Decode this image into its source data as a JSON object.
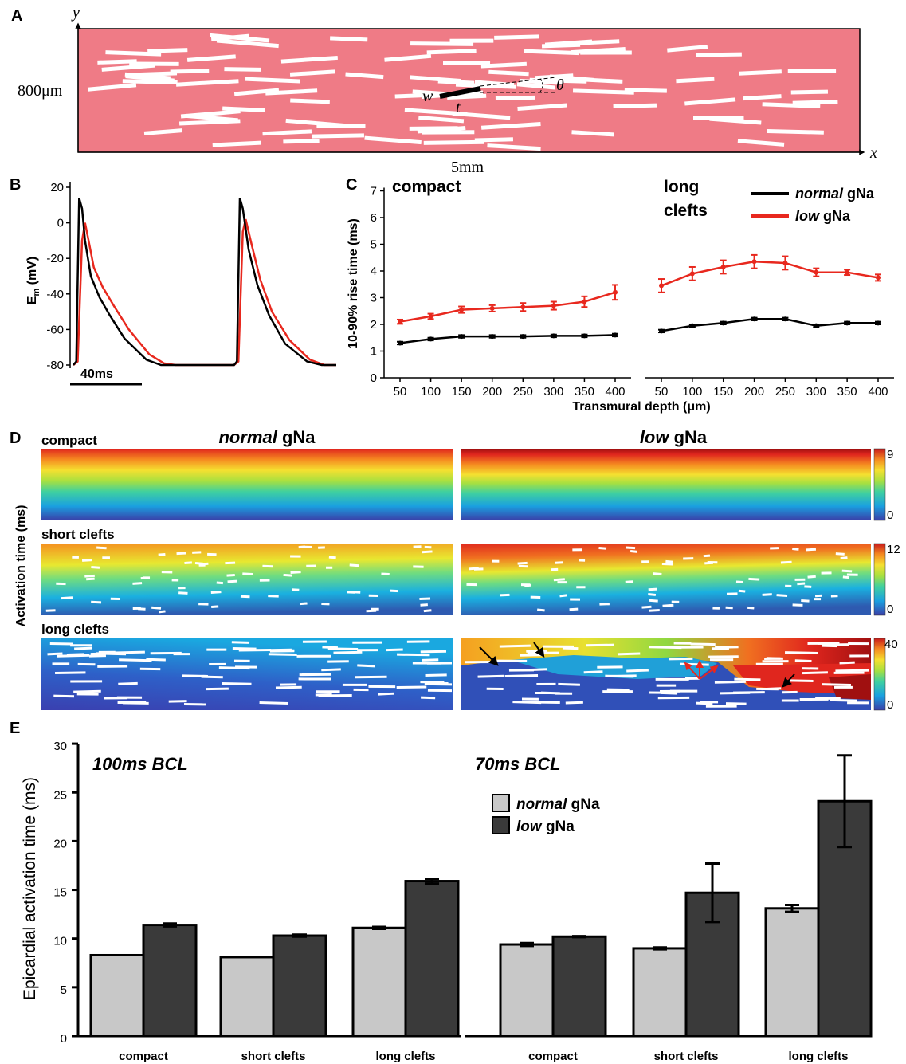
{
  "panels": {
    "A": "A",
    "B": "B",
    "C": "C",
    "D": "D",
    "E": "E"
  },
  "panel_a": {
    "axis_y": "y",
    "axis_x": "x",
    "height_label": "800μm",
    "width_label": "5mm",
    "label_w": "w",
    "label_t": "t",
    "label_theta": "θ",
    "tissue_color": "#ef7b86",
    "cleft_color": "#ffffff"
  },
  "colors": {
    "normal": "#000000",
    "low": "#e8281e",
    "bar_normal": "#c8c8c8",
    "bar_low": "#3a3a3a"
  },
  "chart_data": [
    {
      "panel": "B",
      "type": "line",
      "ylabel": "E_m (mV)",
      "ylim": [
        -80,
        20
      ],
      "yticks": [
        20,
        0,
        -20,
        -40,
        -60,
        -80
      ],
      "scale_bar": "40ms",
      "series": [
        {
          "x": [
            0,
            2,
            4,
            6,
            8,
            12,
            18,
            25,
            35,
            50,
            60,
            70,
            80,
            90,
            100,
            110,
            112,
            114,
            116,
            120,
            126,
            134,
            145,
            160,
            170,
            180
          ],
          "values": [
            -80,
            -78,
            14,
            8,
            -10,
            -30,
            -42,
            -52,
            -65,
            -77,
            -80,
            -80,
            -80,
            -80,
            -80,
            -80,
            -78,
            14,
            8,
            -15,
            -35,
            -52,
            -68,
            -78,
            -80,
            -80
          ]
        },
        {
          "x": [
            0,
            3,
            6,
            8,
            10,
            14,
            20,
            28,
            38,
            52,
            62,
            70,
            80,
            90,
            100,
            110,
            113,
            116,
            118,
            122,
            128,
            136,
            148,
            162,
            172,
            180
          ],
          "values": [
            -80,
            -78,
            -10,
            0,
            -8,
            -25,
            -36,
            -47,
            -60,
            -74,
            -79,
            -80,
            -80,
            -80,
            -80,
            -80,
            -78,
            -5,
            2,
            -12,
            -32,
            -50,
            -66,
            -77,
            -80,
            -80
          ]
        }
      ]
    },
    {
      "panel": "C",
      "type": "line",
      "ylabel": "10-90% rise time (ms)",
      "xlabel": "Transmural depth (μm)",
      "ylim": [
        0,
        7
      ],
      "yticks": [
        0,
        1,
        2,
        3,
        4,
        5,
        6,
        7
      ],
      "x": [
        50,
        100,
        150,
        200,
        250,
        300,
        350,
        400
      ],
      "legend": [
        {
          "emph": "normal",
          "rest": " gNa"
        },
        {
          "emph": "low",
          "rest": " gNa"
        }
      ],
      "subplots": [
        {
          "title": "compact",
          "normal": [
            1.3,
            1.45,
            1.55,
            1.55,
            1.55,
            1.57,
            1.57,
            1.6
          ],
          "normal_err": [
            0.05,
            0.05,
            0.05,
            0.05,
            0.05,
            0.05,
            0.05,
            0.05
          ],
          "low": [
            2.1,
            2.3,
            2.55,
            2.6,
            2.65,
            2.7,
            2.85,
            3.2
          ],
          "low_err": [
            0.08,
            0.1,
            0.12,
            0.12,
            0.15,
            0.15,
            0.2,
            0.28
          ]
        },
        {
          "title_lines": [
            "long",
            "clefts"
          ],
          "normal": [
            1.75,
            1.95,
            2.05,
            2.2,
            2.2,
            1.95,
            2.05,
            2.05
          ],
          "normal_err": [
            0.05,
            0.05,
            0.05,
            0.05,
            0.05,
            0.05,
            0.05,
            0.05
          ],
          "low": [
            3.45,
            3.9,
            4.15,
            4.35,
            4.3,
            3.95,
            3.95,
            3.75
          ],
          "low_err": [
            0.25,
            0.25,
            0.25,
            0.25,
            0.25,
            0.15,
            0.1,
            0.12
          ]
        }
      ]
    },
    {
      "panel": "D",
      "type": "heatmap",
      "ylabel": "Activation time (ms)",
      "column_titles": [
        {
          "emph": "normal",
          "rest": " gNa"
        },
        {
          "emph": "low",
          "rest": " gNa"
        }
      ],
      "rows": [
        {
          "label": "compact",
          "colorbar_max": "9",
          "colorbar_min": "0"
        },
        {
          "label": "short clefts",
          "colorbar_max": "12",
          "colorbar_min": "0"
        },
        {
          "label": "long clefts",
          "colorbar_max": "40",
          "colorbar_min": "0"
        }
      ]
    },
    {
      "panel": "E",
      "type": "bar",
      "ylabel": "Epicardial activation time (ms)",
      "ylim": [
        0,
        30
      ],
      "yticks": [
        0,
        5,
        10,
        15,
        20,
        25,
        30
      ],
      "legend": [
        {
          "emph": "normal",
          "rest": " gNa"
        },
        {
          "emph": "low",
          "rest": " gNa"
        }
      ],
      "groups": [
        {
          "title": "100ms BCL",
          "categories": [
            "compact",
            "short clefts",
            "long clefts"
          ],
          "normal": [
            8.3,
            8.1,
            11.1
          ],
          "normal_err": [
            0,
            0,
            0.1
          ],
          "low": [
            11.4,
            10.3,
            15.9
          ],
          "low_err": [
            0.15,
            0.1,
            0.25
          ]
        },
        {
          "title": "70ms BCL",
          "categories": [
            "compact",
            "short clefts",
            "long clefts"
          ],
          "normal": [
            9.4,
            9.0,
            13.1
          ],
          "normal_err": [
            0.15,
            0.1,
            0.35
          ],
          "low": [
            10.2,
            14.7,
            24.1
          ],
          "low_err": [
            0.05,
            3.0,
            4.7
          ]
        }
      ]
    }
  ]
}
